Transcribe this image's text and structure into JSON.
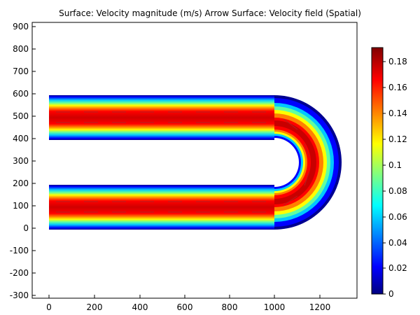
{
  "title": "Surface: Velocity magnitude (m/s)  Arrow Surface: Velocity field (Spatial)",
  "plot": {
    "x_ticks": [
      "0",
      "200",
      "400",
      "600",
      "800",
      "1000",
      "1200"
    ],
    "y_ticks": [
      "900",
      "800",
      "700",
      "600",
      "500",
      "400",
      "300",
      "200",
      "100",
      "0",
      "-100",
      "-200",
      "-300"
    ]
  },
  "colorbar": {
    "ticks": [
      "0.18",
      "0.16",
      "0.14",
      "0.12",
      "0.1",
      "0.08",
      "0.06",
      "0.04",
      "0.02",
      "0"
    ],
    "colors": [
      "#000080",
      "#0000ff",
      "#00ffff",
      "#ffff00",
      "#ff0000",
      "#800000"
    ],
    "range": [
      0,
      0.19
    ]
  },
  "colors": {
    "background": "#ffffff",
    "axes": "#000000",
    "arrows": "#b22222"
  }
}
